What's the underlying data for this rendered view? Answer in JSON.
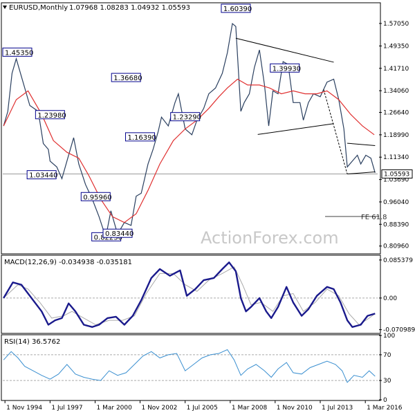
{
  "chart_data": {
    "type": "line",
    "symbol": "EURUSD,Monthly",
    "ohlc": "1.07968 1.08283 1.04932 1.05593",
    "current_price": "1.05593",
    "watermark": "ActionForex.com",
    "x_labels": [
      "1 Nov 1994",
      "1 Jul 1997",
      "1 Mar 2000",
      "1 Nov 2002",
      "1 Jul 2005",
      "1 Mar 2008",
      "1 Nov 2010",
      "1 Jul 2013",
      "1 Mar 2016"
    ],
    "x_label_years": [
      1994.83,
      1997.5,
      2000.17,
      2002.83,
      2005.5,
      2008.17,
      2010.83,
      2013.5,
      2016.17
    ],
    "x_range": [
      1994.7,
      2016.9
    ],
    "price": {
      "ylim": [
        0.7853,
        1.6388
      ],
      "ticks": [
        "1.57050",
        "1.49350",
        "1.41710",
        "1.34060",
        "1.26640",
        "1.18990",
        "1.11340",
        "1.03690",
        "0.96040",
        "0.88390",
        "0.80960"
      ],
      "tick_values": [
        1.5705,
        1.4935,
        1.4171,
        1.3406,
        1.2664,
        1.1899,
        1.1134,
        1.0369,
        0.9604,
        0.8839,
        0.8096
      ],
      "close_series": [
        [
          1994.75,
          1.22
        ],
        [
          1995.0,
          1.27
        ],
        [
          1995.25,
          1.4
        ],
        [
          1995.5,
          1.45
        ],
        [
          1995.9,
          1.37
        ],
        [
          1996.3,
          1.29
        ],
        [
          1996.8,
          1.27
        ],
        [
          1997.1,
          1.16
        ],
        [
          1997.4,
          1.14
        ],
        [
          1997.5,
          1.1
        ],
        [
          1997.9,
          1.08
        ],
        [
          1998.2,
          1.04
        ],
        [
          1998.6,
          1.12
        ],
        [
          1998.9,
          1.18
        ],
        [
          1999.2,
          1.09
        ],
        [
          1999.6,
          1.02
        ],
        [
          2000.0,
          0.97
        ],
        [
          2000.4,
          0.91
        ],
        [
          2000.8,
          0.84
        ],
        [
          2001.1,
          0.93
        ],
        [
          2001.5,
          0.85
        ],
        [
          2001.9,
          0.89
        ],
        [
          2002.3,
          0.88
        ],
        [
          2002.6,
          0.98
        ],
        [
          2002.9,
          0.99
        ],
        [
          2003.3,
          1.09
        ],
        [
          2003.6,
          1.14
        ],
        [
          2003.9,
          1.2
        ],
        [
          2004.1,
          1.25
        ],
        [
          2004.5,
          1.22
        ],
        [
          2004.9,
          1.3
        ],
        [
          2005.1,
          1.33
        ],
        [
          2005.5,
          1.21
        ],
        [
          2005.9,
          1.19
        ],
        [
          2006.2,
          1.24
        ],
        [
          2006.6,
          1.28
        ],
        [
          2006.9,
          1.33
        ],
        [
          2007.3,
          1.35
        ],
        [
          2007.7,
          1.4
        ],
        [
          2008.0,
          1.47
        ],
        [
          2008.3,
          1.57
        ],
        [
          2008.5,
          1.56
        ],
        [
          2008.8,
          1.27
        ],
        [
          2009.0,
          1.3
        ],
        [
          2009.3,
          1.33
        ],
        [
          2009.6,
          1.42
        ],
        [
          2009.9,
          1.48
        ],
        [
          2010.2,
          1.36
        ],
        [
          2010.45,
          1.22
        ],
        [
          2010.7,
          1.34
        ],
        [
          2011.0,
          1.33
        ],
        [
          2011.3,
          1.44
        ],
        [
          2011.6,
          1.43
        ],
        [
          2011.9,
          1.3
        ],
        [
          2012.3,
          1.3
        ],
        [
          2012.5,
          1.24
        ],
        [
          2012.8,
          1.3
        ],
        [
          2013.1,
          1.33
        ],
        [
          2013.5,
          1.32
        ],
        [
          2013.9,
          1.37
        ],
        [
          2014.3,
          1.38
        ],
        [
          2014.6,
          1.31
        ],
        [
          2014.9,
          1.21
        ],
        [
          2015.1,
          1.08
        ],
        [
          2015.4,
          1.1
        ],
        [
          2015.7,
          1.12
        ],
        [
          2015.9,
          1.09
        ],
        [
          2016.2,
          1.12
        ],
        [
          2016.5,
          1.11
        ],
        [
          2016.75,
          1.06
        ]
      ],
      "ma_series": [
        [
          1994.75,
          1.22
        ],
        [
          1995.5,
          1.31
        ],
        [
          1996.2,
          1.34
        ],
        [
          1997.0,
          1.26
        ],
        [
          1997.7,
          1.17
        ],
        [
          1998.5,
          1.13
        ],
        [
          1999.2,
          1.11
        ],
        [
          1999.8,
          1.05
        ],
        [
          2000.5,
          0.97
        ],
        [
          2001.2,
          0.91
        ],
        [
          2001.9,
          0.89
        ],
        [
          2002.6,
          0.92
        ],
        [
          2003.3,
          1.0
        ],
        [
          2004.0,
          1.09
        ],
        [
          2004.8,
          1.17
        ],
        [
          2005.5,
          1.21
        ],
        [
          2006.2,
          1.24
        ],
        [
          2006.9,
          1.28
        ],
        [
          2007.5,
          1.32
        ],
        [
          2008.0,
          1.35
        ],
        [
          2008.6,
          1.38
        ],
        [
          2009.2,
          1.36
        ],
        [
          2009.9,
          1.36
        ],
        [
          2010.5,
          1.35
        ],
        [
          2011.2,
          1.33
        ],
        [
          2011.9,
          1.34
        ],
        [
          2012.6,
          1.33
        ],
        [
          2013.3,
          1.33
        ],
        [
          2013.9,
          1.34
        ],
        [
          2014.6,
          1.31
        ],
        [
          2015.3,
          1.26
        ],
        [
          2016.0,
          1.22
        ],
        [
          2016.7,
          1.19
        ]
      ],
      "annotations": [
        {
          "text": "1.45350",
          "x": 1995.5,
          "y": 1.4535
        },
        {
          "text": "1.23980",
          "x": 1997.5,
          "y": 1.2398
        },
        {
          "text": "1.03440",
          "x": 1997.0,
          "y": 1.0344
        },
        {
          "text": "0.95960",
          "x": 2000.2,
          "y": 0.9596
        },
        {
          "text": "0.82230",
          "x": 2000.83,
          "y": 0.8223
        },
        {
          "text": "0.83440",
          "x": 2001.5,
          "y": 0.8344
        },
        {
          "text": "1.36680",
          "x": 2002.0,
          "y": 1.3668
        },
        {
          "text": "1.16390",
          "x": 2002.83,
          "y": 1.1639
        },
        {
          "text": "1.23290",
          "x": 2005.5,
          "y": 1.2329
        },
        {
          "text": "1.60390",
          "x": 2008.5,
          "y": 1.6039
        },
        {
          "text": "1.39930",
          "x": 2011.4,
          "y": 1.3993
        }
      ],
      "trendlines": [
        {
          "from": [
            2008.5,
            1.52
          ],
          "to": [
            2014.3,
            1.438
          ]
        },
        {
          "from": [
            2009.8,
            1.191
          ],
          "to": [
            2014.3,
            1.228
          ]
        },
        {
          "from": [
            2015.1,
            1.161
          ],
          "to": [
            2016.75,
            1.153
          ]
        },
        {
          "from": [
            2015.1,
            1.056
          ],
          "to": [
            2016.75,
            1.063
          ]
        }
      ],
      "dashed_line": {
        "from": [
          2013.7,
          1.345
        ],
        "to": [
          2015.1,
          1.056
        ]
      },
      "fe_label": "FE 61.8",
      "fe_level": 0.9106
    },
    "macd": {
      "label": "MACD(12,26,9) -0.034938 -0.035181",
      "ylim": [
        -0.0778,
        0.0945
      ],
      "ticks": [
        "0.085379",
        "0.00",
        "-0.070989"
      ],
      "tick_values": [
        0.085379,
        0.0,
        -0.070989
      ],
      "macd_series": [
        [
          1994.75,
          0.0
        ],
        [
          1995.3,
          0.035
        ],
        [
          1995.8,
          0.03
        ],
        [
          1996.4,
          0.0
        ],
        [
          1997.0,
          -0.03
        ],
        [
          1997.4,
          -0.06
        ],
        [
          1997.8,
          -0.05
        ],
        [
          1998.2,
          -0.045
        ],
        [
          1998.6,
          -0.012
        ],
        [
          1999.0,
          -0.03
        ],
        [
          1999.5,
          -0.06
        ],
        [
          2000.0,
          -0.065
        ],
        [
          2000.4,
          -0.06
        ],
        [
          2000.9,
          -0.045
        ],
        [
          2001.4,
          -0.042
        ],
        [
          2001.9,
          -0.06
        ],
        [
          2002.4,
          -0.04
        ],
        [
          2002.9,
          -0.005
        ],
        [
          2003.5,
          0.045
        ],
        [
          2004.0,
          0.065
        ],
        [
          2004.6,
          0.05
        ],
        [
          2005.2,
          0.062
        ],
        [
          2005.6,
          0.005
        ],
        [
          2006.1,
          0.02
        ],
        [
          2006.6,
          0.04
        ],
        [
          2007.2,
          0.045
        ],
        [
          2007.7,
          0.065
        ],
        [
          2008.1,
          0.08
        ],
        [
          2008.5,
          0.06
        ],
        [
          2008.8,
          0.0
        ],
        [
          2009.1,
          -0.03
        ],
        [
          2009.4,
          -0.02
        ],
        [
          2009.9,
          0.0
        ],
        [
          2010.3,
          -0.03
        ],
        [
          2010.6,
          -0.045
        ],
        [
          2011.0,
          -0.02
        ],
        [
          2011.5,
          0.025
        ],
        [
          2011.9,
          -0.01
        ],
        [
          2012.4,
          -0.04
        ],
        [
          2012.8,
          -0.025
        ],
        [
          2013.3,
          0.005
        ],
        [
          2013.9,
          0.025
        ],
        [
          2014.3,
          0.02
        ],
        [
          2014.7,
          -0.01
        ],
        [
          2015.1,
          -0.05
        ],
        [
          2015.4,
          -0.065
        ],
        [
          2015.9,
          -0.06
        ],
        [
          2016.3,
          -0.04
        ],
        [
          2016.75,
          -0.035
        ]
      ],
      "signal_series": [
        [
          1994.75,
          0.0
        ],
        [
          1995.6,
          0.03
        ],
        [
          1996.2,
          0.02
        ],
        [
          1996.9,
          -0.01
        ],
        [
          1997.6,
          -0.045
        ],
        [
          1998.3,
          -0.04
        ],
        [
          1998.8,
          -0.03
        ],
        [
          1999.5,
          -0.045
        ],
        [
          2000.2,
          -0.06
        ],
        [
          2001.0,
          -0.05
        ],
        [
          2001.8,
          -0.05
        ],
        [
          2002.5,
          -0.04
        ],
        [
          2003.2,
          0.01
        ],
        [
          2004.0,
          0.055
        ],
        [
          2004.8,
          0.055
        ],
        [
          2005.5,
          0.03
        ],
        [
          2006.2,
          0.015
        ],
        [
          2006.9,
          0.04
        ],
        [
          2007.7,
          0.055
        ],
        [
          2008.4,
          0.07
        ],
        [
          2008.9,
          0.03
        ],
        [
          2009.4,
          -0.015
        ],
        [
          2010.0,
          -0.01
        ],
        [
          2010.7,
          -0.03
        ],
        [
          2011.3,
          0.005
        ],
        [
          2011.9,
          0.01
        ],
        [
          2012.5,
          -0.03
        ],
        [
          2013.2,
          -0.01
        ],
        [
          2013.9,
          0.02
        ],
        [
          2014.6,
          0.005
        ],
        [
          2015.2,
          -0.035
        ],
        [
          2015.8,
          -0.06
        ],
        [
          2016.4,
          -0.045
        ],
        [
          2016.75,
          -0.035
        ]
      ]
    },
    "rsi": {
      "label": "RSI(14) 36.5762",
      "ylim": [
        0,
        100
      ],
      "ticks": [
        "100",
        "70",
        "30",
        "0"
      ],
      "tick_values": [
        100,
        70,
        30,
        0
      ],
      "series": [
        [
          1994.75,
          62
        ],
        [
          1995.2,
          75
        ],
        [
          1995.6,
          65
        ],
        [
          1996.0,
          52
        ],
        [
          1996.5,
          45
        ],
        [
          1997.0,
          38
        ],
        [
          1997.5,
          32
        ],
        [
          1998.0,
          40
        ],
        [
          1998.5,
          55
        ],
        [
          1999.0,
          40
        ],
        [
          1999.5,
          35
        ],
        [
          2000.0,
          32
        ],
        [
          2000.5,
          30
        ],
        [
          2001.0,
          45
        ],
        [
          2001.5,
          38
        ],
        [
          2002.0,
          42
        ],
        [
          2002.5,
          55
        ],
        [
          2003.0,
          68
        ],
        [
          2003.5,
          75
        ],
        [
          2004.0,
          65
        ],
        [
          2004.5,
          70
        ],
        [
          2005.0,
          72
        ],
        [
          2005.5,
          45
        ],
        [
          2006.0,
          55
        ],
        [
          2006.5,
          65
        ],
        [
          2007.0,
          70
        ],
        [
          2007.5,
          72
        ],
        [
          2008.0,
          78
        ],
        [
          2008.4,
          62
        ],
        [
          2008.8,
          38
        ],
        [
          2009.2,
          48
        ],
        [
          2009.7,
          55
        ],
        [
          2010.2,
          45
        ],
        [
          2010.6,
          35
        ],
        [
          2011.0,
          48
        ],
        [
          2011.5,
          58
        ],
        [
          2011.9,
          42
        ],
        [
          2012.4,
          40
        ],
        [
          2012.9,
          50
        ],
        [
          2013.4,
          55
        ],
        [
          2013.9,
          60
        ],
        [
          2014.4,
          55
        ],
        [
          2014.8,
          45
        ],
        [
          2015.1,
          27
        ],
        [
          2015.5,
          38
        ],
        [
          2016.0,
          35
        ],
        [
          2016.4,
          45
        ],
        [
          2016.75,
          36.6
        ]
      ]
    }
  }
}
